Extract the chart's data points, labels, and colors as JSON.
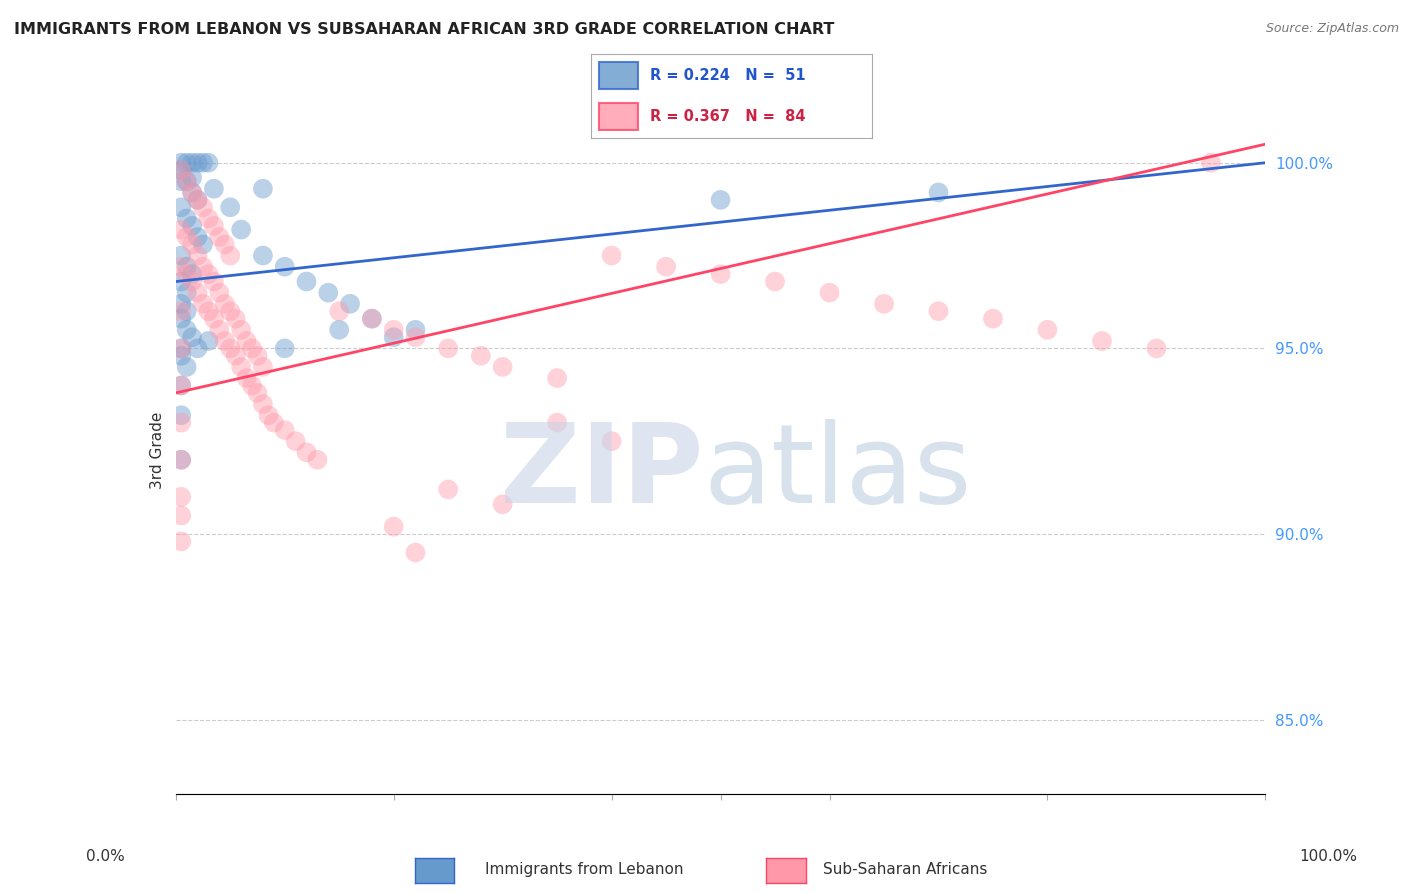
{
  "title": "IMMIGRANTS FROM LEBANON VS SUBSAHARAN AFRICAN 3RD GRADE CORRELATION CHART",
  "source": "Source: ZipAtlas.com",
  "ylabel": "3rd Grade",
  "blue_color": "#6699CC",
  "pink_color": "#FF99AA",
  "blue_line_color": "#3366CC",
  "pink_line_color": "#FF4466",
  "grid_color": "#CCCCCC",
  "blue_dots": [
    [
      0.5,
      100.0
    ],
    [
      1.0,
      100.0
    ],
    [
      1.5,
      100.0
    ],
    [
      2.0,
      100.0
    ],
    [
      2.5,
      100.0
    ],
    [
      3.0,
      100.0
    ],
    [
      0.5,
      99.5
    ],
    [
      1.0,
      99.5
    ],
    [
      1.5,
      99.2
    ],
    [
      2.0,
      99.0
    ],
    [
      0.5,
      98.8
    ],
    [
      1.0,
      98.5
    ],
    [
      1.5,
      98.3
    ],
    [
      2.0,
      98.0
    ],
    [
      2.5,
      97.8
    ],
    [
      0.5,
      97.5
    ],
    [
      1.0,
      97.2
    ],
    [
      1.5,
      97.0
    ],
    [
      0.5,
      96.8
    ],
    [
      1.0,
      96.5
    ],
    [
      0.5,
      96.2
    ],
    [
      1.0,
      96.0
    ],
    [
      0.5,
      95.8
    ],
    [
      1.0,
      95.5
    ],
    [
      1.5,
      95.3
    ],
    [
      2.0,
      95.0
    ],
    [
      0.5,
      94.8
    ],
    [
      1.0,
      94.5
    ],
    [
      0.5,
      99.8
    ],
    [
      1.5,
      99.6
    ],
    [
      3.5,
      99.3
    ],
    [
      5.0,
      98.8
    ],
    [
      6.0,
      98.2
    ],
    [
      8.0,
      97.5
    ],
    [
      10.0,
      97.2
    ],
    [
      12.0,
      96.8
    ],
    [
      14.0,
      96.5
    ],
    [
      16.0,
      96.2
    ],
    [
      18.0,
      95.8
    ],
    [
      0.5,
      95.0
    ],
    [
      0.5,
      94.0
    ],
    [
      0.5,
      93.2
    ],
    [
      3.0,
      95.2
    ],
    [
      8.0,
      99.3
    ],
    [
      50.0,
      99.0
    ],
    [
      70.0,
      99.2
    ],
    [
      22.0,
      95.5
    ],
    [
      20.0,
      95.3
    ],
    [
      0.5,
      92.0
    ],
    [
      10.0,
      95.0
    ],
    [
      15.0,
      95.5
    ]
  ],
  "pink_dots": [
    [
      0.5,
      99.8
    ],
    [
      1.0,
      99.5
    ],
    [
      1.5,
      99.2
    ],
    [
      2.0,
      99.0
    ],
    [
      2.5,
      98.8
    ],
    [
      3.0,
      98.5
    ],
    [
      3.5,
      98.3
    ],
    [
      4.0,
      98.0
    ],
    [
      4.5,
      97.8
    ],
    [
      5.0,
      97.5
    ],
    [
      0.5,
      98.2
    ],
    [
      1.0,
      98.0
    ],
    [
      1.5,
      97.8
    ],
    [
      2.0,
      97.5
    ],
    [
      2.5,
      97.2
    ],
    [
      3.0,
      97.0
    ],
    [
      3.5,
      96.8
    ],
    [
      4.0,
      96.5
    ],
    [
      4.5,
      96.2
    ],
    [
      5.0,
      96.0
    ],
    [
      5.5,
      95.8
    ],
    [
      6.0,
      95.5
    ],
    [
      6.5,
      95.2
    ],
    [
      7.0,
      95.0
    ],
    [
      7.5,
      94.8
    ],
    [
      8.0,
      94.5
    ],
    [
      0.5,
      97.2
    ],
    [
      1.0,
      97.0
    ],
    [
      1.5,
      96.8
    ],
    [
      2.0,
      96.5
    ],
    [
      2.5,
      96.2
    ],
    [
      3.0,
      96.0
    ],
    [
      3.5,
      95.8
    ],
    [
      4.0,
      95.5
    ],
    [
      4.5,
      95.2
    ],
    [
      5.0,
      95.0
    ],
    [
      5.5,
      94.8
    ],
    [
      6.0,
      94.5
    ],
    [
      6.5,
      94.2
    ],
    [
      7.0,
      94.0
    ],
    [
      7.5,
      93.8
    ],
    [
      8.0,
      93.5
    ],
    [
      8.5,
      93.2
    ],
    [
      9.0,
      93.0
    ],
    [
      10.0,
      92.8
    ],
    [
      11.0,
      92.5
    ],
    [
      12.0,
      92.2
    ],
    [
      13.0,
      92.0
    ],
    [
      15.0,
      96.0
    ],
    [
      18.0,
      95.8
    ],
    [
      20.0,
      95.5
    ],
    [
      22.0,
      95.3
    ],
    [
      25.0,
      95.0
    ],
    [
      28.0,
      94.8
    ],
    [
      30.0,
      94.5
    ],
    [
      35.0,
      94.2
    ],
    [
      40.0,
      97.5
    ],
    [
      45.0,
      97.2
    ],
    [
      50.0,
      97.0
    ],
    [
      55.0,
      96.8
    ],
    [
      60.0,
      96.5
    ],
    [
      65.0,
      96.2
    ],
    [
      70.0,
      96.0
    ],
    [
      75.0,
      95.8
    ],
    [
      80.0,
      95.5
    ],
    [
      85.0,
      95.2
    ],
    [
      90.0,
      95.0
    ],
    [
      95.0,
      100.0
    ],
    [
      0.5,
      96.0
    ],
    [
      0.5,
      95.0
    ],
    [
      0.5,
      94.0
    ],
    [
      0.5,
      93.0
    ],
    [
      0.5,
      92.0
    ],
    [
      0.5,
      91.0
    ],
    [
      0.5,
      90.5
    ],
    [
      0.5,
      89.8
    ],
    [
      20.0,
      90.2
    ],
    [
      22.0,
      89.5
    ],
    [
      30.0,
      90.8
    ],
    [
      25.0,
      91.2
    ],
    [
      35.0,
      93.0
    ],
    [
      40.0,
      92.5
    ]
  ],
  "blue_trend": [
    0.0,
    96.8,
    100.0,
    100.0
  ],
  "pink_trend": [
    0.0,
    93.8,
    100.0,
    100.5
  ],
  "xlim": [
    0.0,
    100.0
  ],
  "ylim": [
    83.0,
    101.5
  ],
  "yticks": [
    85.0,
    90.0,
    95.0,
    100.0
  ],
  "xticks": [
    0,
    20,
    40,
    50,
    60,
    80,
    100
  ]
}
